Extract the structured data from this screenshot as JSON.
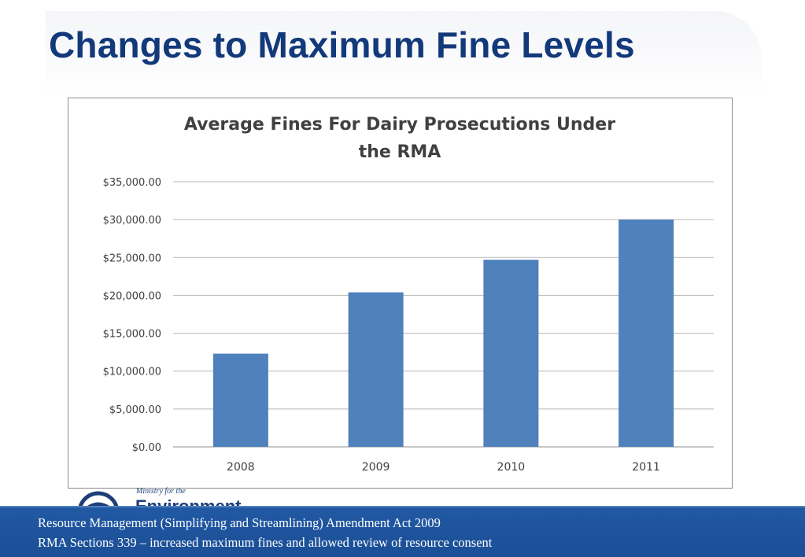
{
  "slide": {
    "title": "Changes to Maximum Fine Levels"
  },
  "logo": {
    "small_text": "Ministry for the",
    "big_text": "Environment"
  },
  "footer": {
    "line1": "Resource Management (Simplifying and Streamlining) Amendment Act 2009",
    "line2": "RMA Sections 339 – increased  maximum fines and allowed review of resource consent"
  },
  "colors": {
    "title": "#12397a",
    "bar": "#4f81bd",
    "footer_bg": "#1f569f",
    "gridline": "#b7b7b7"
  },
  "chart_data": {
    "type": "bar",
    "title_lines": [
      "Average Fines For Dairy Prosecutions Under",
      "the RMA"
    ],
    "categories": [
      "2008",
      "2009",
      "2010",
      "2011"
    ],
    "values": [
      12300,
      20400,
      24700,
      30000
    ],
    "ylim": [
      0,
      35000
    ],
    "yticks": [
      0,
      5000,
      10000,
      15000,
      20000,
      25000,
      30000,
      35000
    ],
    "ytick_labels": [
      "$0.00",
      "$5,000.00",
      "$10,000.00",
      "$15,000.00",
      "$20,000.00",
      "$25,000.00",
      "$30,000.00",
      "$35,000.00"
    ],
    "grid": true,
    "legend": "none"
  }
}
